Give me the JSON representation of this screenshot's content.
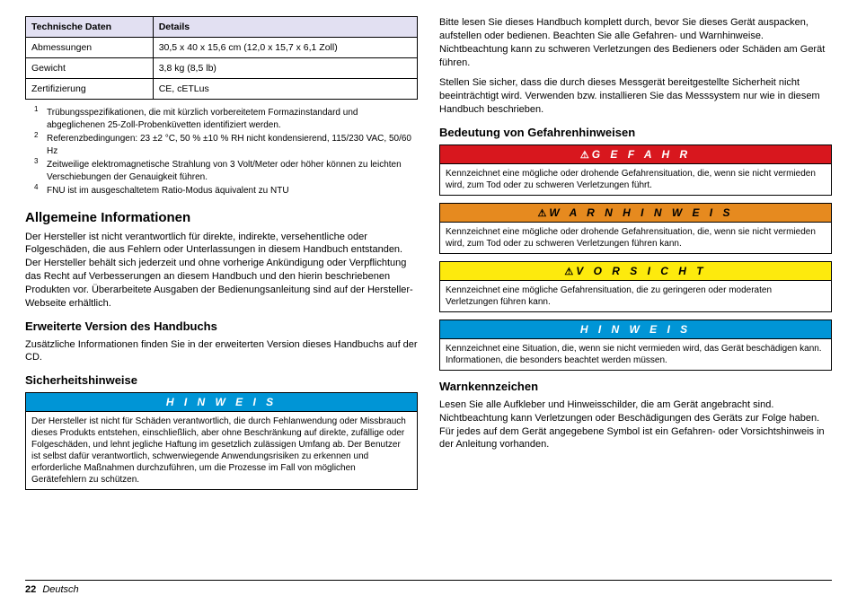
{
  "specTable": {
    "headers": [
      "Technische Daten",
      "Details"
    ],
    "rows": [
      [
        "Abmessungen",
        "30,5 x 40 x 15,6 cm (12,0 x 15,7 x 6,1 Zoll)"
      ],
      [
        "Gewicht",
        "3,8 kg (8,5 lb)"
      ],
      [
        "Zertifizierung",
        "CE, cETLus"
      ]
    ]
  },
  "footnotes": [
    "Trübungsspezifikationen, die mit kürzlich vorbereitetem Formazinstandard und abgeglichenen 25-Zoll-Probenküvetten identifiziert werden.",
    "Referenzbedingungen: 23 ±2 °C, 50 % ±10 % RH nicht kondensierend, 115/230 VAC, 50/60 Hz",
    "Zeitweilige elektromagnetische Strahlung von 3 Volt/Meter oder höher können zu leichten Verschiebungen der Genauigkeit führen.",
    "FNU ist im ausgeschaltetem Ratio-Modus äquivalent zu NTU"
  ],
  "left": {
    "h1": "Allgemeine Informationen",
    "p1": "Der Hersteller ist nicht verantwortlich für direkte, indirekte, versehentliche oder Folgeschäden, die aus Fehlern oder Unterlassungen in diesem Handbuch entstanden. Der Hersteller behält sich jederzeit und ohne vorherige Ankündigung oder Verpflichtung das Recht auf Verbesserungen an diesem Handbuch und den hierin beschriebenen Produkten vor. Überarbeitete Ausgaben der Bedienungsanleitung sind auf der Hersteller-Webseite erhältlich.",
    "h2a": "Erweiterte Version des Handbuchs",
    "p2": "Zusätzliche Informationen finden Sie in der erweiterten Version dieses Handbuchs auf der CD.",
    "h2b": "Sicherheitshinweise",
    "noticeTitle": "H I N W E I S",
    "noticeBody": "Der Hersteller ist nicht für Schäden verantwortlich, die durch Fehlanwendung oder Missbrauch dieses Produkts entstehen, einschließlich, aber ohne Beschränkung auf direkte, zufällige oder Folgeschäden, und lehnt jegliche Haftung im gesetzlich zulässigen Umfang ab. Der Benutzer ist selbst dafür verantwortlich, schwerwiegende Anwendungsrisiken zu erkennen und erforderliche Maßnahmen durchzuführen, um die Prozesse im Fall von möglichen Gerätefehlern zu schützen."
  },
  "right": {
    "p1": "Bitte lesen Sie dieses Handbuch komplett durch, bevor Sie dieses Gerät auspacken, aufstellen oder bedienen. Beachten Sie alle Gefahren- und Warnhinweise. Nichtbeachtung kann zu schweren Verletzungen des Bedieners oder Schäden am Gerät führen.",
    "p2": "Stellen Sie sicher, dass die durch dieses Messgerät bereitgestellte Sicherheit nicht beeinträchtigt wird. Verwenden bzw. installieren Sie das Messsystem nur wie in diesem Handbuch beschrieben.",
    "h2a": "Bedeutung von Gefahrenhinweisen",
    "danger": {
      "title": "G E F A H R",
      "body": "Kennzeichnet eine mögliche oder drohende Gefahrensituation, die, wenn sie nicht vermieden wird, zum Tod oder zu schweren Verletzungen führt."
    },
    "warning": {
      "title": "W A R N H I N W E I S",
      "body": "Kennzeichnet eine mögliche oder drohende Gefahrensituation, die, wenn sie nicht vermieden wird, zum Tod oder zu schweren Verletzungen führen kann."
    },
    "caution": {
      "title": "V O R S I C H T",
      "body": "Kennzeichnet eine mögliche Gefahrensituation, die zu geringeren oder moderaten Verletzungen führen kann."
    },
    "info": {
      "title": "H I N W E I S",
      "body": "Kennzeichnet eine Situation, die, wenn sie nicht vermieden wird, das Gerät beschädigen kann. Informationen, die besonders beachtet werden müssen."
    },
    "h2b": "Warnkennzeichen",
    "p3": "Lesen Sie alle Aufkleber und Hinweisschilder, die am Gerät angebracht sind. Nichtbeachtung kann Verletzungen oder Beschädigungen des Geräts zur Folge haben. Für jedes auf dem Gerät angegebene Symbol ist ein Gefahren- oder Vorsichtshinweis in der Anleitung vorhanden."
  },
  "footer": {
    "page": "22",
    "lang": "Deutsch"
  },
  "icons": {
    "warn": "⚠"
  }
}
